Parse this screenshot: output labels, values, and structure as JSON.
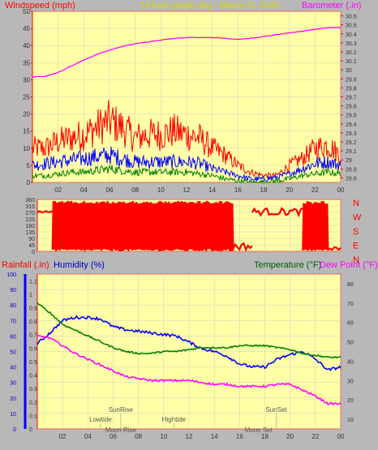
{
  "header": {
    "left_label": "Windspeed (mph)",
    "title": "24 hour graph day : March 21 2020",
    "right_label": "Barometer (.in)"
  },
  "lower_header": {
    "rainfall_label": "Rainfall (.in)",
    "humidity_label": "Humidity (%)",
    "temperature_label": "Temperature (°F)",
    "dewpoint_label": "Dew Point (°F)"
  },
  "colors": {
    "plot_bg": "#ffffa8",
    "frame": "#ff0000",
    "wind_gust": "#ff0000",
    "wind_avg": "#0000ff",
    "wind_low": "#008000",
    "barometer": "#ff00ff",
    "direction": "#ff0000",
    "humidity": "#0000ff",
    "temperature": "#008000",
    "dewpoint": "#ff00ff",
    "rainfall_axis": "#0000ff",
    "events": "#555555"
  },
  "chart_data": [
    {
      "type": "line",
      "name": "wind-barometer",
      "x_ticks": [
        "02",
        "04",
        "06",
        "08",
        "10",
        "12",
        "14",
        "16",
        "18",
        "20",
        "22",
        "00"
      ],
      "xlim": [
        0,
        24
      ],
      "y_left_ticks": [
        0,
        5,
        10,
        15,
        20,
        25,
        30,
        35,
        40,
        45,
        50
      ],
      "ylim_left": [
        0,
        50
      ],
      "y_right_ticks": [
        "28.8",
        "28.9",
        "29",
        "29.1",
        "29.2",
        "29.3",
        "29.4",
        "29.5",
        "29.6",
        "29.7",
        "29.8",
        "29.9",
        "30",
        "30.1",
        "30.2",
        "30.3",
        "30.4",
        "30.5",
        "30.6"
      ],
      "ylim_right": [
        28.75,
        30.65
      ],
      "series": [
        {
          "name": "Wind gust",
          "axis": "left",
          "style": "noisy-band",
          "x": [
            0,
            1,
            2,
            3,
            4,
            5,
            6,
            7,
            8,
            9,
            10,
            11,
            12,
            13,
            14,
            15,
            16,
            17,
            18,
            19,
            20,
            21,
            22,
            23,
            24
          ],
          "values": [
            10,
            10,
            12,
            13,
            14,
            16,
            18,
            16,
            13,
            14,
            14,
            15,
            14,
            13,
            10,
            8,
            5,
            3,
            2,
            2,
            5,
            7,
            10,
            11,
            8
          ]
        },
        {
          "name": "Wind average",
          "axis": "left",
          "style": "noisy-band",
          "x": [
            0,
            1,
            2,
            3,
            4,
            5,
            6,
            7,
            8,
            9,
            10,
            11,
            12,
            13,
            14,
            15,
            16,
            17,
            18,
            19,
            20,
            21,
            22,
            23,
            24
          ],
          "values": [
            5,
            5.5,
            6,
            6.5,
            7,
            7.5,
            8,
            7,
            6,
            6,
            6,
            6,
            6,
            5.5,
            4,
            3,
            2,
            1,
            1,
            1.5,
            2.5,
            4,
            5.5,
            6,
            5
          ]
        },
        {
          "name": "Wind low",
          "axis": "left",
          "style": "noisy-band",
          "x": [
            0,
            1,
            2,
            3,
            4,
            5,
            6,
            7,
            8,
            9,
            10,
            11,
            12,
            13,
            14,
            15,
            16,
            17,
            18,
            19,
            20,
            21,
            22,
            23,
            24
          ],
          "values": [
            2,
            2,
            2.5,
            3,
            3,
            3.5,
            4,
            3.5,
            3,
            3,
            3,
            3,
            3,
            2.5,
            2,
            1,
            0.5,
            0,
            0,
            0.5,
            1,
            2,
            2.5,
            3,
            2.5
          ]
        },
        {
          "name": "Barometer",
          "axis": "right",
          "x": [
            0,
            1,
            2,
            3,
            4,
            5,
            6,
            7,
            8,
            9,
            10,
            11,
            12,
            13,
            14,
            15,
            16,
            17,
            18,
            19,
            20,
            21,
            22,
            23,
            24
          ],
          "values": [
            29.92,
            29.93,
            29.97,
            30.04,
            30.11,
            30.17,
            30.22,
            30.26,
            30.29,
            30.31,
            30.33,
            30.35,
            30.36,
            30.36,
            30.36,
            30.35,
            30.34,
            30.35,
            30.37,
            30.39,
            30.41,
            30.43,
            30.45,
            30.47,
            30.47
          ]
        }
      ]
    },
    {
      "type": "scatter",
      "name": "wind-direction",
      "x_ticks": [
        "02",
        "04",
        "06",
        "08",
        "10",
        "12",
        "14",
        "16",
        "18",
        "20",
        "22",
        "00"
      ],
      "xlim": [
        0,
        24
      ],
      "y_ticks": [
        0,
        45,
        90,
        135,
        180,
        225,
        270,
        315,
        360
      ],
      "ylim": [
        0,
        360
      ],
      "compass": [
        "N",
        "W",
        "S",
        "E",
        "N"
      ],
      "series": [
        {
          "name": "Wind direction",
          "style": "oscillating",
          "segments": [
            {
              "x": [
                0,
                1.2
              ],
              "values": [
                270,
                280
              ]
            },
            {
              "x": [
                1.2,
                15.5
              ],
              "values": [
                0,
                350
              ]
            },
            {
              "x": [
                15.5,
                17
              ],
              "values": [
                10,
                60
              ]
            },
            {
              "x": [
                17,
                21
              ],
              "values": [
                250,
                300
              ]
            },
            {
              "x": [
                21,
                23
              ],
              "values": [
                0,
                350
              ]
            },
            {
              "x": [
                23,
                24
              ],
              "values": [
                10,
                30
              ]
            }
          ]
        }
      ]
    },
    {
      "type": "line",
      "name": "temperature-humidity",
      "x_ticks": [
        "02",
        "04",
        "06",
        "08",
        "10",
        "12",
        "14",
        "16",
        "18",
        "20",
        "22",
        "00"
      ],
      "xlim": [
        0,
        24
      ],
      "y_humidity_ticks": [
        0,
        10,
        20,
        30,
        40,
        50,
        60,
        70,
        80,
        90,
        100
      ],
      "ylim_humidity": [
        0,
        100
      ],
      "y_rain_ticks": [
        "0",
        "0.1",
        "0.2",
        "0.3",
        "0.4",
        "0.5",
        "0.6",
        "0.7",
        "0.8",
        "0.9",
        "1",
        "1.1"
      ],
      "ylim_rain": [
        0,
        1.15
      ],
      "y_temp_ticks": [
        10,
        20,
        30,
        40,
        50,
        60,
        70,
        80
      ],
      "ylim_temp": [
        5,
        85
      ],
      "series": [
        {
          "name": "Humidity",
          "axis": "humidity",
          "x": [
            0,
            1,
            2,
            3,
            4,
            5,
            6,
            7,
            8,
            9,
            10,
            11,
            12,
            13,
            14,
            15,
            16,
            17,
            18,
            19,
            20,
            21,
            22,
            23,
            24
          ],
          "values": [
            55,
            62,
            70,
            72,
            72,
            71,
            66,
            64,
            63,
            62,
            61,
            60,
            56,
            52,
            50,
            47,
            42,
            40,
            40,
            45,
            48,
            50,
            45,
            38,
            40
          ]
        },
        {
          "name": "Temperature",
          "axis": "temp",
          "x": [
            0,
            1,
            2,
            3,
            4,
            5,
            6,
            7,
            8,
            9,
            10,
            11,
            12,
            13,
            14,
            15,
            16,
            17,
            18,
            19,
            20,
            21,
            22,
            23,
            24
          ],
          "values": [
            70,
            65,
            59,
            56,
            53,
            50,
            47,
            45,
            44,
            44,
            45,
            45,
            46,
            47,
            47,
            47,
            48,
            48,
            48,
            47,
            46,
            44,
            43,
            42,
            42
          ]
        },
        {
          "name": "Dew Point",
          "axis": "temp",
          "x": [
            0,
            1,
            2,
            3,
            4,
            5,
            6,
            7,
            8,
            9,
            10,
            11,
            12,
            13,
            14,
            15,
            16,
            17,
            18,
            19,
            20,
            21,
            22,
            23,
            24
          ],
          "values": [
            53,
            52,
            48,
            44,
            41,
            38,
            35,
            32,
            31,
            30,
            30,
            30,
            30,
            29,
            28,
            28,
            27,
            27,
            27,
            28,
            28,
            25,
            22,
            18,
            18
          ]
        }
      ]
    }
  ],
  "events": {
    "labels": [
      {
        "text": "SunRise",
        "hour": 6.6,
        "row": 0
      },
      {
        "text": "Lowtide",
        "hour": 5.0,
        "row": 1
      },
      {
        "text": "Moon Rise",
        "hour": 6.6,
        "row": 2
      },
      {
        "text": "Hightide",
        "hour": 10.8,
        "row": 1
      },
      {
        "text": "SunSet",
        "hour": 18.9,
        "row": 0
      },
      {
        "text": "Moon Set",
        "hour": 17.5,
        "row": 2
      }
    ]
  }
}
